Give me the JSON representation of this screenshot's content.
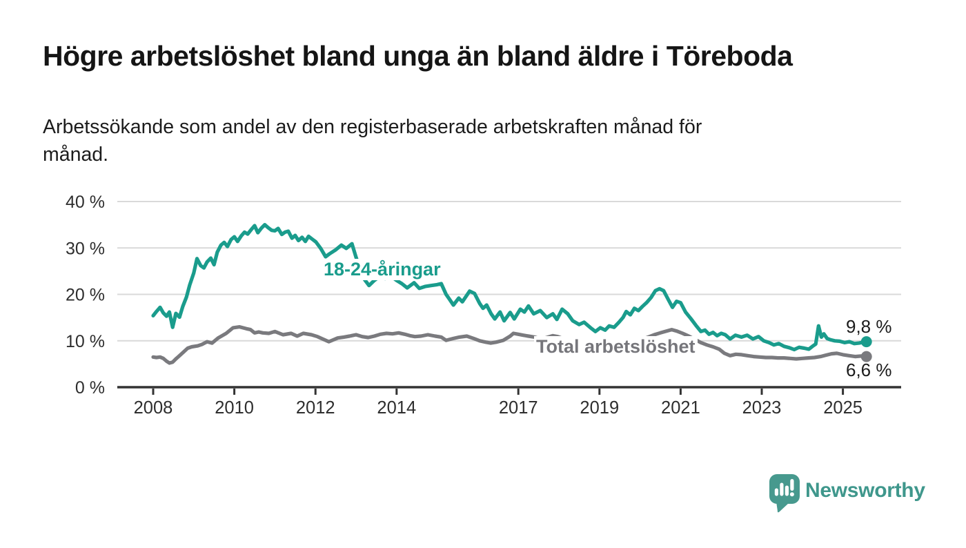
{
  "header": {
    "title": "Högre arbetslöshet bland unga än bland äldre i Töreboda",
    "subtitle": "Arbetssökande som andel av den registerbaserade arbetskraften månad för\nmånad."
  },
  "chart_data": {
    "type": "line",
    "title": "Högre arbetslöshet bland unga än bland äldre i Töreboda",
    "subtitle": "Arbetssökande som andel av den registerbaserade arbetskraften månad för månad.",
    "grid": true,
    "legend_position": "inline-labels",
    "x_axis": {
      "ticks": [
        2008,
        2010,
        2012,
        2014,
        2017,
        2019,
        2021,
        2023,
        2025
      ],
      "tick_labels": [
        "2008",
        "2010",
        "2012",
        "2014",
        "2017",
        "2019",
        "2021",
        "2023",
        "2025"
      ],
      "range": [
        2007.1,
        2026.4
      ]
    },
    "y_axis": {
      "unit": "%",
      "ticks": [
        40,
        30,
        20,
        10,
        0
      ],
      "tick_labels": [
        "40 %",
        "30 %",
        "20 %",
        "10 %",
        "0 %"
      ],
      "range": [
        0,
        40
      ]
    },
    "series": [
      {
        "name": "youth-18-24",
        "label": "18-24-åringar",
        "color": "#1a9c8c",
        "end_label": "9,8 %",
        "end_value": 9.8,
        "points": [
          [
            2008.0,
            15.4
          ],
          [
            2008.08,
            16.3
          ],
          [
            2008.17,
            17.2
          ],
          [
            2008.25,
            16.0
          ],
          [
            2008.33,
            15.3
          ],
          [
            2008.4,
            16.2
          ],
          [
            2008.48,
            12.9
          ],
          [
            2008.56,
            15.9
          ],
          [
            2008.65,
            15.1
          ],
          [
            2008.73,
            17.4
          ],
          [
            2008.82,
            19.4
          ],
          [
            2008.9,
            22.0
          ],
          [
            2009.0,
            24.6
          ],
          [
            2009.08,
            27.7
          ],
          [
            2009.17,
            26.2
          ],
          [
            2009.25,
            25.7
          ],
          [
            2009.33,
            27.0
          ],
          [
            2009.42,
            27.8
          ],
          [
            2009.5,
            26.4
          ],
          [
            2009.58,
            29.1
          ],
          [
            2009.67,
            30.6
          ],
          [
            2009.75,
            31.2
          ],
          [
            2009.83,
            30.3
          ],
          [
            2009.92,
            31.8
          ],
          [
            2010.0,
            32.4
          ],
          [
            2010.08,
            31.4
          ],
          [
            2010.17,
            32.6
          ],
          [
            2010.25,
            33.4
          ],
          [
            2010.33,
            33.0
          ],
          [
            2010.42,
            34.0
          ],
          [
            2010.5,
            34.8
          ],
          [
            2010.58,
            33.3
          ],
          [
            2010.67,
            34.3
          ],
          [
            2010.75,
            35.0
          ],
          [
            2010.83,
            34.4
          ],
          [
            2010.92,
            33.8
          ],
          [
            2011.0,
            33.7
          ],
          [
            2011.08,
            34.2
          ],
          [
            2011.17,
            32.9
          ],
          [
            2011.25,
            33.4
          ],
          [
            2011.33,
            33.6
          ],
          [
            2011.42,
            32.1
          ],
          [
            2011.5,
            32.7
          ],
          [
            2011.58,
            31.6
          ],
          [
            2011.67,
            32.3
          ],
          [
            2011.75,
            31.4
          ],
          [
            2011.83,
            32.5
          ],
          [
            2011.92,
            31.9
          ],
          [
            2012.01,
            31.3
          ],
          [
            2012.13,
            29.9
          ],
          [
            2012.25,
            28.1
          ],
          [
            2012.34,
            28.7
          ],
          [
            2012.5,
            29.6
          ],
          [
            2012.64,
            30.6
          ],
          [
            2012.76,
            29.9
          ],
          [
            2012.9,
            30.9
          ],
          [
            2013.0,
            28.0
          ],
          [
            2013.1,
            25.4
          ],
          [
            2013.2,
            23.3
          ],
          [
            2013.32,
            21.9
          ],
          [
            2013.45,
            23.0
          ],
          [
            2013.58,
            23.8
          ],
          [
            2013.72,
            23.4
          ],
          [
            2013.86,
            23.9
          ],
          [
            2014.0,
            23.0
          ],
          [
            2014.13,
            22.3
          ],
          [
            2014.26,
            21.4
          ],
          [
            2014.43,
            22.5
          ],
          [
            2014.56,
            21.3
          ],
          [
            2014.7,
            21.7
          ],
          [
            2014.85,
            21.9
          ],
          [
            2015.0,
            22.1
          ],
          [
            2015.1,
            22.3
          ],
          [
            2015.22,
            20.0
          ],
          [
            2015.3,
            19.0
          ],
          [
            2015.4,
            17.7
          ],
          [
            2015.53,
            19.2
          ],
          [
            2015.62,
            18.4
          ],
          [
            2015.8,
            20.7
          ],
          [
            2015.92,
            20.2
          ],
          [
            2016.05,
            18.0
          ],
          [
            2016.13,
            17.0
          ],
          [
            2016.22,
            17.7
          ],
          [
            2016.33,
            15.8
          ],
          [
            2016.42,
            14.7
          ],
          [
            2016.55,
            16.2
          ],
          [
            2016.65,
            14.3
          ],
          [
            2016.8,
            16.1
          ],
          [
            2016.9,
            14.7
          ],
          [
            2017.05,
            16.8
          ],
          [
            2017.15,
            16.2
          ],
          [
            2017.25,
            17.5
          ],
          [
            2017.38,
            15.8
          ],
          [
            2017.54,
            16.5
          ],
          [
            2017.7,
            15.0
          ],
          [
            2017.85,
            15.8
          ],
          [
            2017.95,
            14.6
          ],
          [
            2018.08,
            16.8
          ],
          [
            2018.22,
            15.8
          ],
          [
            2018.34,
            14.3
          ],
          [
            2018.5,
            13.5
          ],
          [
            2018.62,
            14.0
          ],
          [
            2018.78,
            12.8
          ],
          [
            2018.9,
            12.0
          ],
          [
            2019.02,
            12.8
          ],
          [
            2019.14,
            12.3
          ],
          [
            2019.24,
            13.2
          ],
          [
            2019.36,
            12.9
          ],
          [
            2019.48,
            14.0
          ],
          [
            2019.58,
            15.0
          ],
          [
            2019.66,
            16.3
          ],
          [
            2019.76,
            15.6
          ],
          [
            2019.86,
            17.0
          ],
          [
            2019.96,
            16.5
          ],
          [
            2020.06,
            17.4
          ],
          [
            2020.16,
            18.2
          ],
          [
            2020.27,
            19.3
          ],
          [
            2020.38,
            20.8
          ],
          [
            2020.48,
            21.2
          ],
          [
            2020.58,
            20.8
          ],
          [
            2020.7,
            18.8
          ],
          [
            2020.8,
            17.2
          ],
          [
            2020.9,
            18.5
          ],
          [
            2021.0,
            18.2
          ],
          [
            2021.12,
            16.2
          ],
          [
            2021.25,
            14.8
          ],
          [
            2021.38,
            13.3
          ],
          [
            2021.5,
            12.0
          ],
          [
            2021.6,
            12.3
          ],
          [
            2021.7,
            11.4
          ],
          [
            2021.8,
            11.8
          ],
          [
            2021.9,
            11.1
          ],
          [
            2022.0,
            11.6
          ],
          [
            2022.1,
            11.3
          ],
          [
            2022.22,
            10.4
          ],
          [
            2022.35,
            11.2
          ],
          [
            2022.5,
            10.8
          ],
          [
            2022.64,
            11.2
          ],
          [
            2022.78,
            10.4
          ],
          [
            2022.92,
            10.9
          ],
          [
            2023.05,
            10.0
          ],
          [
            2023.18,
            9.6
          ],
          [
            2023.3,
            9.1
          ],
          [
            2023.42,
            9.4
          ],
          [
            2023.55,
            8.8
          ],
          [
            2023.68,
            8.5
          ],
          [
            2023.8,
            8.1
          ],
          [
            2023.92,
            8.6
          ],
          [
            2024.05,
            8.4
          ],
          [
            2024.16,
            8.2
          ],
          [
            2024.25,
            8.8
          ],
          [
            2024.33,
            9.3
          ],
          [
            2024.4,
            13.2
          ],
          [
            2024.47,
            10.8
          ],
          [
            2024.53,
            11.5
          ],
          [
            2024.61,
            10.5
          ],
          [
            2024.7,
            10.2
          ],
          [
            2024.8,
            10.0
          ],
          [
            2024.92,
            9.9
          ],
          [
            2025.04,
            9.6
          ],
          [
            2025.16,
            9.8
          ],
          [
            2025.28,
            9.4
          ],
          [
            2025.4,
            9.5
          ],
          [
            2025.5,
            9.7
          ],
          [
            2025.58,
            9.8
          ]
        ]
      },
      {
        "name": "total",
        "label": "Total arbetslöshet",
        "color": "#7a7a7e",
        "end_label": "6,6 %",
        "end_value": 6.6,
        "points": [
          [
            2008.0,
            6.5
          ],
          [
            2008.08,
            6.4
          ],
          [
            2008.17,
            6.5
          ],
          [
            2008.25,
            6.2
          ],
          [
            2008.33,
            5.6
          ],
          [
            2008.4,
            5.2
          ],
          [
            2008.48,
            5.4
          ],
          [
            2008.56,
            6.1
          ],
          [
            2008.65,
            6.8
          ],
          [
            2008.75,
            7.6
          ],
          [
            2008.85,
            8.4
          ],
          [
            2008.95,
            8.7
          ],
          [
            2009.1,
            8.9
          ],
          [
            2009.2,
            9.2
          ],
          [
            2009.33,
            9.8
          ],
          [
            2009.45,
            9.5
          ],
          [
            2009.6,
            10.6
          ],
          [
            2009.8,
            11.6
          ],
          [
            2009.97,
            12.8
          ],
          [
            2010.13,
            13.0
          ],
          [
            2010.3,
            12.6
          ],
          [
            2010.4,
            12.4
          ],
          [
            2010.5,
            11.7
          ],
          [
            2010.6,
            11.9
          ],
          [
            2010.7,
            11.7
          ],
          [
            2010.85,
            11.6
          ],
          [
            2011.0,
            12.0
          ],
          [
            2011.2,
            11.3
          ],
          [
            2011.4,
            11.6
          ],
          [
            2011.55,
            11.0
          ],
          [
            2011.7,
            11.6
          ],
          [
            2011.9,
            11.3
          ],
          [
            2012.05,
            10.9
          ],
          [
            2012.2,
            10.3
          ],
          [
            2012.33,
            9.8
          ],
          [
            2012.55,
            10.6
          ],
          [
            2012.7,
            10.8
          ],
          [
            2012.84,
            11.0
          ],
          [
            2013.0,
            11.3
          ],
          [
            2013.15,
            10.9
          ],
          [
            2013.3,
            10.7
          ],
          [
            2013.45,
            11.0
          ],
          [
            2013.6,
            11.4
          ],
          [
            2013.75,
            11.6
          ],
          [
            2013.9,
            11.5
          ],
          [
            2014.05,
            11.7
          ],
          [
            2014.2,
            11.4
          ],
          [
            2014.33,
            11.1
          ],
          [
            2014.45,
            10.9
          ],
          [
            2014.6,
            11.0
          ],
          [
            2014.77,
            11.3
          ],
          [
            2014.95,
            11.0
          ],
          [
            2015.1,
            10.8
          ],
          [
            2015.22,
            10.1
          ],
          [
            2015.4,
            10.5
          ],
          [
            2015.55,
            10.8
          ],
          [
            2015.73,
            11.0
          ],
          [
            2015.9,
            10.5
          ],
          [
            2016.05,
            10.0
          ],
          [
            2016.2,
            9.7
          ],
          [
            2016.32,
            9.5
          ],
          [
            2016.45,
            9.7
          ],
          [
            2016.63,
            10.1
          ],
          [
            2016.8,
            11.0
          ],
          [
            2016.88,
            11.6
          ],
          [
            2017.0,
            11.4
          ],
          [
            2017.12,
            11.2
          ],
          [
            2017.25,
            11.0
          ],
          [
            2017.4,
            10.8
          ],
          [
            2017.55,
            10.4
          ],
          [
            2017.7,
            10.7
          ],
          [
            2017.85,
            11.1
          ],
          [
            2017.97,
            10.9
          ],
          [
            2018.1,
            10.5
          ],
          [
            2018.25,
            10.1
          ],
          [
            2018.4,
            9.7
          ],
          [
            2018.55,
            9.4
          ],
          [
            2018.7,
            9.7
          ],
          [
            2018.85,
            9.4
          ],
          [
            2019.0,
            9.1
          ],
          [
            2019.15,
            8.9
          ],
          [
            2019.3,
            8.8
          ],
          [
            2019.45,
            9.4
          ],
          [
            2019.6,
            10.0
          ],
          [
            2019.75,
            9.7
          ],
          [
            2019.9,
            9.9
          ],
          [
            2020.05,
            10.3
          ],
          [
            2020.2,
            10.8
          ],
          [
            2020.35,
            11.3
          ],
          [
            2020.5,
            11.7
          ],
          [
            2020.62,
            12.0
          ],
          [
            2020.78,
            12.4
          ],
          [
            2020.9,
            12.1
          ],
          [
            2021.05,
            11.6
          ],
          [
            2021.2,
            11.0
          ],
          [
            2021.35,
            10.3
          ],
          [
            2021.5,
            9.6
          ],
          [
            2021.65,
            9.1
          ],
          [
            2021.8,
            8.7
          ],
          [
            2021.95,
            8.2
          ],
          [
            2022.08,
            7.3
          ],
          [
            2022.22,
            6.8
          ],
          [
            2022.36,
            7.1
          ],
          [
            2022.5,
            7.0
          ],
          [
            2022.65,
            6.8
          ],
          [
            2022.8,
            6.6
          ],
          [
            2022.95,
            6.5
          ],
          [
            2023.1,
            6.4
          ],
          [
            2023.25,
            6.4
          ],
          [
            2023.4,
            6.3
          ],
          [
            2023.55,
            6.3
          ],
          [
            2023.7,
            6.2
          ],
          [
            2023.85,
            6.1
          ],
          [
            2024.0,
            6.2
          ],
          [
            2024.15,
            6.3
          ],
          [
            2024.3,
            6.4
          ],
          [
            2024.45,
            6.6
          ],
          [
            2024.58,
            6.9
          ],
          [
            2024.72,
            7.2
          ],
          [
            2024.85,
            7.3
          ],
          [
            2025.0,
            7.0
          ],
          [
            2025.15,
            6.8
          ],
          [
            2025.3,
            6.6
          ],
          [
            2025.45,
            6.7
          ],
          [
            2025.58,
            6.6
          ]
        ]
      }
    ]
  },
  "footer": {
    "brand": "Newsworthy"
  },
  "colors": {
    "accent_teal": "#1a9c8c",
    "series_gray": "#7a7a7e",
    "gridline": "#d9d9d9",
    "axis": "#333333",
    "text_dark": "#151515",
    "brand_teal": "#3f978c"
  }
}
